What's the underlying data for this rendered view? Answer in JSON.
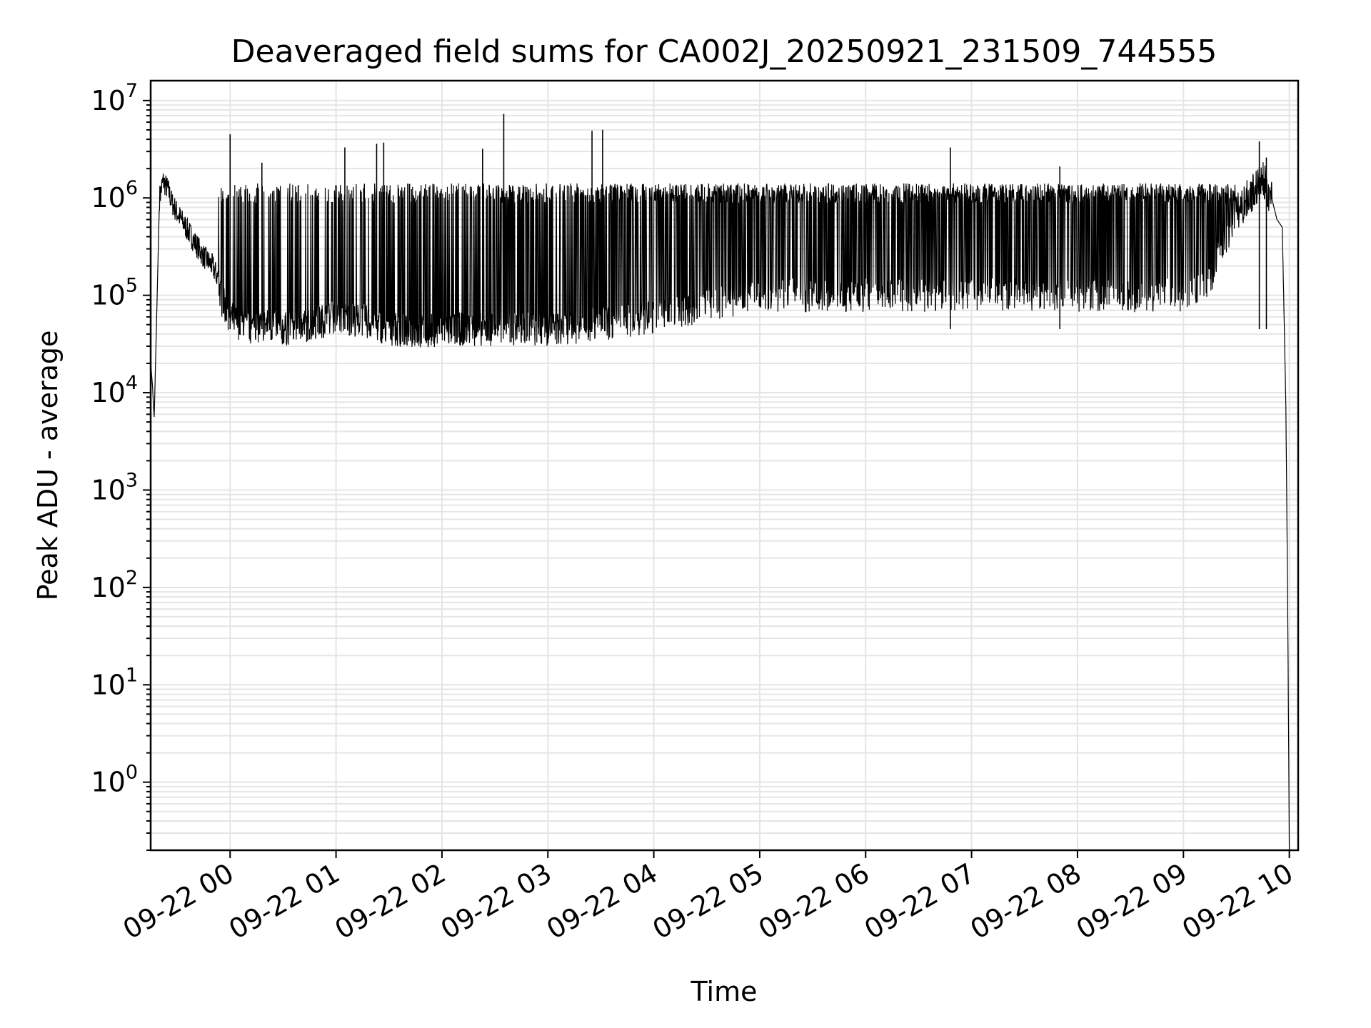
{
  "chart_data": {
    "type": "line",
    "title": "Deaveraged field sums for CA002J_20250921_231509_744555",
    "xlabel": "Time",
    "ylabel": "Peak ADU - average",
    "y_scale": "log",
    "ylim": [
      0.2,
      16000000
    ],
    "xlim": [
      "2025-09-21 23:15",
      "2025-09-22 10:05"
    ],
    "grid": "major and minor, both axes",
    "legend": "none",
    "x_ticks": [
      {
        "value": "2025-09-22 00:00",
        "label": "09-22 00"
      },
      {
        "value": "2025-09-22 01:00",
        "label": "09-22 01"
      },
      {
        "value": "2025-09-22 02:00",
        "label": "09-22 02"
      },
      {
        "value": "2025-09-22 03:00",
        "label": "09-22 03"
      },
      {
        "value": "2025-09-22 04:00",
        "label": "09-22 04"
      },
      {
        "value": "2025-09-22 05:00",
        "label": "09-22 05"
      },
      {
        "value": "2025-09-22 06:00",
        "label": "09-22 06"
      },
      {
        "value": "2025-09-22 07:00",
        "label": "09-22 07"
      },
      {
        "value": "2025-09-22 08:00",
        "label": "09-22 08"
      },
      {
        "value": "2025-09-22 09:00",
        "label": "09-22 09"
      },
      {
        "value": "2025-09-22 10:00",
        "label": "09-22 10"
      }
    ],
    "y_ticks": [
      {
        "value": 1,
        "base": "10",
        "exp": "0"
      },
      {
        "value": 10,
        "base": "10",
        "exp": "1"
      },
      {
        "value": 100,
        "base": "10",
        "exp": "2"
      },
      {
        "value": 1000,
        "base": "10",
        "exp": "3"
      },
      {
        "value": 10000,
        "base": "10",
        "exp": "4"
      },
      {
        "value": 100000,
        "base": "10",
        "exp": "5"
      },
      {
        "value": 1000000,
        "base": "10",
        "exp": "6"
      },
      {
        "value": 10000000,
        "base": "10",
        "exp": "7"
      }
    ],
    "series": [
      {
        "color": "#000000",
        "x": [
          "2025-09-21 23:15",
          "2025-09-21 23:16",
          "2025-09-21 23:17",
          "2025-09-21 23:18",
          "2025-09-21 23:20",
          "2025-09-21 23:22",
          "2025-09-21 23:25",
          "2025-09-21 23:27",
          "2025-09-21 23:30",
          "2025-09-21 23:35",
          "2025-09-21 23:40",
          "2025-09-21 23:45",
          "2025-09-21 23:50",
          "2025-09-21 23:53",
          "2025-09-21 23:55",
          "2025-09-22 00:00",
          "2025-09-22 00:10",
          "2025-09-22 00:20",
          "2025-09-22 00:30",
          "2025-09-22 00:45",
          "2025-09-22 01:00",
          "2025-09-22 01:15",
          "2025-09-22 01:30",
          "2025-09-22 01:45",
          "2025-09-22 02:00",
          "2025-09-22 02:30",
          "2025-09-22 03:00",
          "2025-09-22 03:30",
          "2025-09-22 04:00",
          "2025-09-22 04:30",
          "2025-09-22 05:00",
          "2025-09-22 05:30",
          "2025-09-22 06:00",
          "2025-09-22 06:30",
          "2025-09-22 07:00",
          "2025-09-22 07:30",
          "2025-09-22 08:00",
          "2025-09-22 08:30",
          "2025-09-22 09:00",
          "2025-09-22 09:15",
          "2025-09-22 09:30",
          "2025-09-22 09:40",
          "2025-09-22 09:45",
          "2025-09-22 09:50",
          "2025-09-22 09:53",
          "2025-09-22 09:56",
          "2025-09-22 09:58",
          "2025-09-22 09:59",
          "2025-09-22 10:00"
        ],
        "y": [
          20000,
          12000,
          5500,
          30000,
          1000000,
          1500000,
          1200000,
          900000,
          700000,
          500000,
          350000,
          250000,
          200000,
          150000,
          90000,
          60000,
          45000,
          50000,
          45000,
          50000,
          60000,
          55000,
          45000,
          42000,
          45000,
          45000,
          45000,
          50000,
          60000,
          80000,
          100000,
          100000,
          100000,
          100000,
          100000,
          100000,
          100000,
          100000,
          100000,
          150000,
          700000,
          1200000,
          1500000,
          1000000,
          600000,
          500000,
          8000,
          100,
          0.2
        ]
      }
    ],
    "spikes": [
      {
        "x": "2025-09-22 00:00",
        "y": 4500000
      },
      {
        "x": "2025-09-22 00:18",
        "y": 2300000
      },
      {
        "x": "2025-09-22 01:05",
        "y": 3300000
      },
      {
        "x": "2025-09-22 01:23",
        "y": 3600000
      },
      {
        "x": "2025-09-22 01:27",
        "y": 3700000
      },
      {
        "x": "2025-09-22 02:23",
        "y": 3200000
      },
      {
        "x": "2025-09-22 02:35",
        "y": 7300000
      },
      {
        "x": "2025-09-22 03:25",
        "y": 4900000
      },
      {
        "x": "2025-09-22 03:31",
        "y": 5000000
      },
      {
        "x": "2025-09-22 06:48",
        "y": 3300000
      },
      {
        "x": "2025-09-22 07:50",
        "y": 2100000
      },
      {
        "x": "2025-09-22 09:43",
        "y": 3800000
      },
      {
        "x": "2025-09-22 09:47",
        "y": 2600000
      }
    ]
  }
}
